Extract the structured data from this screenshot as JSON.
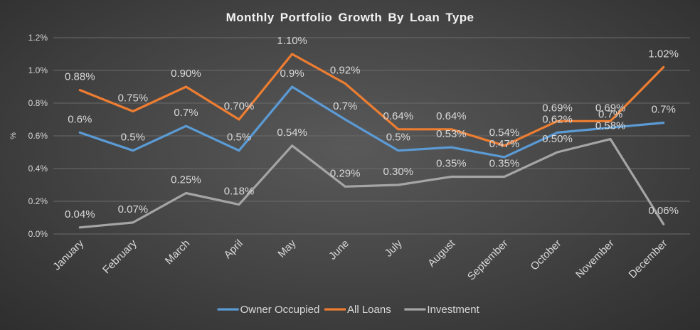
{
  "chart_data": {
    "type": "line",
    "title": "Monthly Portfolio Growth By Loan Type",
    "xlabel": "",
    "ylabel": "%",
    "ylim": [
      0,
      1.2
    ],
    "yticks": [
      "0.0%",
      "0.2%",
      "0.4%",
      "0.6%",
      "0.8%",
      "1.0%",
      "1.2%"
    ],
    "grid": true,
    "legend_position": "bottom",
    "categories": [
      "January",
      "February",
      "March",
      "April",
      "May",
      "June",
      "July",
      "August",
      "September",
      "October",
      "November",
      "December"
    ],
    "series": [
      {
        "name": "Owner Occupied",
        "color": "#5b9bd5",
        "values": [
          0.62,
          0.51,
          0.66,
          0.51,
          0.9,
          0.7,
          0.51,
          0.53,
          0.47,
          0.62,
          0.65,
          0.68
        ],
        "labels": [
          "0.6%",
          "0.5%",
          "0.7%",
          "0.5%",
          "0.9%",
          "0.7%",
          "0.5%",
          "0.53%",
          "0.47%",
          "0.62%",
          "0.7%",
          "0.7%"
        ]
      },
      {
        "name": "All Loans",
        "color": "#ed7d31",
        "values": [
          0.88,
          0.75,
          0.9,
          0.7,
          1.1,
          0.92,
          0.64,
          0.64,
          0.54,
          0.69,
          0.69,
          1.02
        ],
        "labels": [
          "0.88%",
          "0.75%",
          "0.90%",
          "0.70%",
          "1.10%",
          "0.92%",
          "0.64%",
          "0.64%",
          "0.54%",
          "0.69%",
          "0.69%",
          "1.02%"
        ]
      },
      {
        "name": "Investment",
        "color": "#a5a5a5",
        "values": [
          0.04,
          0.07,
          0.25,
          0.18,
          0.54,
          0.29,
          0.3,
          0.35,
          0.35,
          0.5,
          0.58,
          0.06
        ],
        "labels": [
          "0.04%",
          "0.07%",
          "0.25%",
          "0.18%",
          "0.54%",
          "0.29%",
          "0.30%",
          "0.35%",
          "0.35%",
          "0.50%",
          "0.58%",
          "0.06%"
        ]
      }
    ]
  }
}
